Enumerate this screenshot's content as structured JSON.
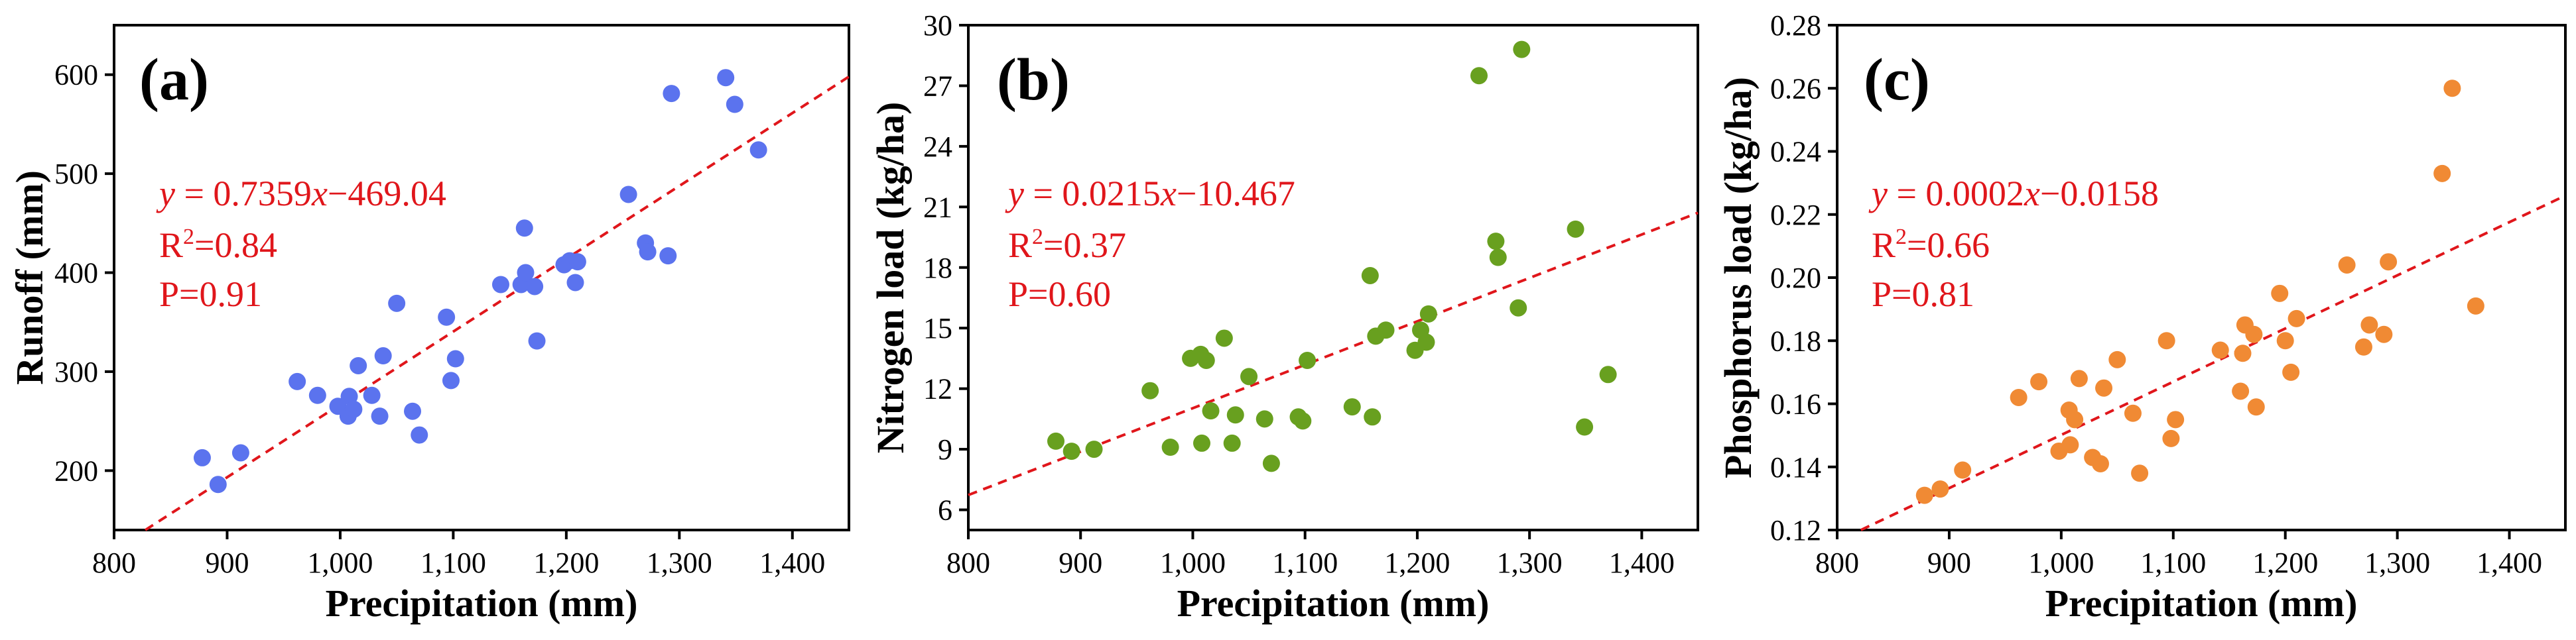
{
  "chart_data": [
    {
      "type": "scatter",
      "panel": "(a)",
      "xlabel": "Precipitation (mm)",
      "ylabel": "Runoff (mm)",
      "xlim": [
        800,
        1450
      ],
      "ylim": [
        140,
        650
      ],
      "xticks": [
        800,
        900,
        1000,
        1100,
        1200,
        1300,
        1400
      ],
      "xtick_labels": [
        "800",
        "900",
        "1,000",
        "1,100",
        "1,200",
        "1,300",
        "1,400"
      ],
      "yticks": [
        200,
        300,
        400,
        500,
        600
      ],
      "ytick_labels": [
        "200",
        "300",
        "400",
        "500",
        "600"
      ],
      "color": "#5b73ee",
      "fit": {
        "slope": 0.7359,
        "intercept": -469.04
      },
      "annotation": {
        "equation": "y = 0.7359x−469.04",
        "r2_prefix": "R",
        "r2_sup": "2",
        "r2_value": "=0.84",
        "p": "P=0.91"
      },
      "points": [
        {
          "x": 878,
          "y": 213
        },
        {
          "x": 892,
          "y": 186
        },
        {
          "x": 912,
          "y": 218
        },
        {
          "x": 962,
          "y": 290
        },
        {
          "x": 980,
          "y": 276
        },
        {
          "x": 998,
          "y": 265
        },
        {
          "x": 1007,
          "y": 255
        },
        {
          "x": 1008,
          "y": 275
        },
        {
          "x": 1012,
          "y": 262
        },
        {
          "x": 1016,
          "y": 306
        },
        {
          "x": 1028,
          "y": 276
        },
        {
          "x": 1035,
          "y": 255
        },
        {
          "x": 1038,
          "y": 316
        },
        {
          "x": 1050,
          "y": 369
        },
        {
          "x": 1064,
          "y": 260
        },
        {
          "x": 1070,
          "y": 236
        },
        {
          "x": 1094,
          "y": 355
        },
        {
          "x": 1098,
          "y": 291
        },
        {
          "x": 1102,
          "y": 313
        },
        {
          "x": 1142,
          "y": 388
        },
        {
          "x": 1160,
          "y": 388
        },
        {
          "x": 1163,
          "y": 445
        },
        {
          "x": 1164,
          "y": 400
        },
        {
          "x": 1172,
          "y": 386
        },
        {
          "x": 1174,
          "y": 331
        },
        {
          "x": 1198,
          "y": 408
        },
        {
          "x": 1203,
          "y": 412
        },
        {
          "x": 1208,
          "y": 390
        },
        {
          "x": 1210,
          "y": 411
        },
        {
          "x": 1255,
          "y": 479
        },
        {
          "x": 1270,
          "y": 430
        },
        {
          "x": 1272,
          "y": 421
        },
        {
          "x": 1290,
          "y": 417
        },
        {
          "x": 1293,
          "y": 581
        },
        {
          "x": 1341,
          "y": 597
        },
        {
          "x": 1349,
          "y": 570
        },
        {
          "x": 1370,
          "y": 524
        }
      ]
    },
    {
      "type": "scatter",
      "panel": "(b)",
      "xlabel": "Precipitation (mm)",
      "ylabel": "Nitrogen load (kg/ha)",
      "xlim": [
        800,
        1450
      ],
      "ylim": [
        5,
        30
      ],
      "xticks": [
        800,
        900,
        1000,
        1100,
        1200,
        1300,
        1400
      ],
      "xtick_labels": [
        "800",
        "900",
        "1,000",
        "1,100",
        "1,200",
        "1,300",
        "1,400"
      ],
      "yticks": [
        6,
        9,
        12,
        15,
        18,
        21,
        24,
        27,
        30
      ],
      "ytick_labels": [
        "6",
        "9",
        "12",
        "15",
        "18",
        "21",
        "24",
        "27",
        "30"
      ],
      "color": "#68a01f",
      "fit": {
        "slope": 0.0215,
        "intercept": -10.467
      },
      "annotation": {
        "equation": "y = 0.0215x−10.467",
        "r2_prefix": "R",
        "r2_sup": "2",
        "r2_value": "=0.37",
        "p": "P=0.60"
      },
      "points": [
        {
          "x": 878,
          "y": 9.4
        },
        {
          "x": 892,
          "y": 8.9
        },
        {
          "x": 912,
          "y": 9.0
        },
        {
          "x": 962,
          "y": 11.9
        },
        {
          "x": 980,
          "y": 9.1
        },
        {
          "x": 998,
          "y": 13.5
        },
        {
          "x": 1007,
          "y": 13.7
        },
        {
          "x": 1008,
          "y": 9.3
        },
        {
          "x": 1012,
          "y": 13.4
        },
        {
          "x": 1016,
          "y": 10.9
        },
        {
          "x": 1028,
          "y": 14.5
        },
        {
          "x": 1035,
          "y": 9.3
        },
        {
          "x": 1038,
          "y": 10.7
        },
        {
          "x": 1050,
          "y": 12.6
        },
        {
          "x": 1064,
          "y": 10.5
        },
        {
          "x": 1070,
          "y": 8.3
        },
        {
          "x": 1094,
          "y": 10.6
        },
        {
          "x": 1098,
          "y": 10.4
        },
        {
          "x": 1102,
          "y": 13.4
        },
        {
          "x": 1142,
          "y": 11.1
        },
        {
          "x": 1158,
          "y": 17.6
        },
        {
          "x": 1160,
          "y": 10.6
        },
        {
          "x": 1163,
          "y": 14.6
        },
        {
          "x": 1172,
          "y": 14.9
        },
        {
          "x": 1198,
          "y": 13.9
        },
        {
          "x": 1203,
          "y": 14.9
        },
        {
          "x": 1208,
          "y": 14.3
        },
        {
          "x": 1210,
          "y": 15.7
        },
        {
          "x": 1255,
          "y": 27.5
        },
        {
          "x": 1270,
          "y": 19.3
        },
        {
          "x": 1272,
          "y": 18.5
        },
        {
          "x": 1290,
          "y": 16.0
        },
        {
          "x": 1293,
          "y": 28.8
        },
        {
          "x": 1341,
          "y": 19.9
        },
        {
          "x": 1349,
          "y": 10.1
        },
        {
          "x": 1370,
          "y": 12.7
        }
      ]
    },
    {
      "type": "scatter",
      "panel": "(c)",
      "xlabel": "Precipitation (mm)",
      "ylabel": "Phosphorus load (kg/ha)",
      "xlim": [
        800,
        1450
      ],
      "ylim": [
        0.12,
        0.28
      ],
      "xticks": [
        800,
        900,
        1000,
        1100,
        1200,
        1300,
        1400
      ],
      "xtick_labels": [
        "800",
        "900",
        "1,000",
        "1,100",
        "1,200",
        "1,300",
        "1,400"
      ],
      "yticks": [
        0.12,
        0.14,
        0.16,
        0.18,
        0.2,
        0.22,
        0.24,
        0.26,
        0.28
      ],
      "ytick_labels": [
        "0.12",
        "0.14",
        "0.16",
        "0.18",
        "0.20",
        "0.22",
        "0.24",
        "0.26",
        "0.28"
      ],
      "color": "#f08a34",
      "fit": {
        "slope": 0.0002,
        "intercept": -0.0158
      },
      "fit_line": {
        "x1": 820,
        "y1": 0.1198,
        "x2": 1450,
        "y2": 0.226
      },
      "annotation": {
        "equation": "y = 0.0002x−0.0158",
        "r2_prefix": "R",
        "r2_sup": "2",
        "r2_value": "=0.66",
        "p": "P=0.81"
      },
      "points": [
        {
          "x": 878,
          "y": 0.131
        },
        {
          "x": 892,
          "y": 0.133
        },
        {
          "x": 912,
          "y": 0.139
        },
        {
          "x": 962,
          "y": 0.162
        },
        {
          "x": 980,
          "y": 0.167
        },
        {
          "x": 998,
          "y": 0.145
        },
        {
          "x": 1007,
          "y": 0.158
        },
        {
          "x": 1008,
          "y": 0.147
        },
        {
          "x": 1012,
          "y": 0.155
        },
        {
          "x": 1016,
          "y": 0.168
        },
        {
          "x": 1028,
          "y": 0.143
        },
        {
          "x": 1035,
          "y": 0.141
        },
        {
          "x": 1038,
          "y": 0.165
        },
        {
          "x": 1050,
          "y": 0.174
        },
        {
          "x": 1064,
          "y": 0.157
        },
        {
          "x": 1070,
          "y": 0.138
        },
        {
          "x": 1094,
          "y": 0.18
        },
        {
          "x": 1098,
          "y": 0.149
        },
        {
          "x": 1102,
          "y": 0.155
        },
        {
          "x": 1142,
          "y": 0.177
        },
        {
          "x": 1160,
          "y": 0.164
        },
        {
          "x": 1162,
          "y": 0.176
        },
        {
          "x": 1164,
          "y": 0.185
        },
        {
          "x": 1172,
          "y": 0.182
        },
        {
          "x": 1174,
          "y": 0.159
        },
        {
          "x": 1195,
          "y": 0.195
        },
        {
          "x": 1200,
          "y": 0.18
        },
        {
          "x": 1205,
          "y": 0.17
        },
        {
          "x": 1210,
          "y": 0.187
        },
        {
          "x": 1255,
          "y": 0.204
        },
        {
          "x": 1270,
          "y": 0.178
        },
        {
          "x": 1275,
          "y": 0.185
        },
        {
          "x": 1288,
          "y": 0.182
        },
        {
          "x": 1292,
          "y": 0.205
        },
        {
          "x": 1340,
          "y": 0.233
        },
        {
          "x": 1349,
          "y": 0.26
        },
        {
          "x": 1370,
          "y": 0.191
        }
      ]
    }
  ]
}
